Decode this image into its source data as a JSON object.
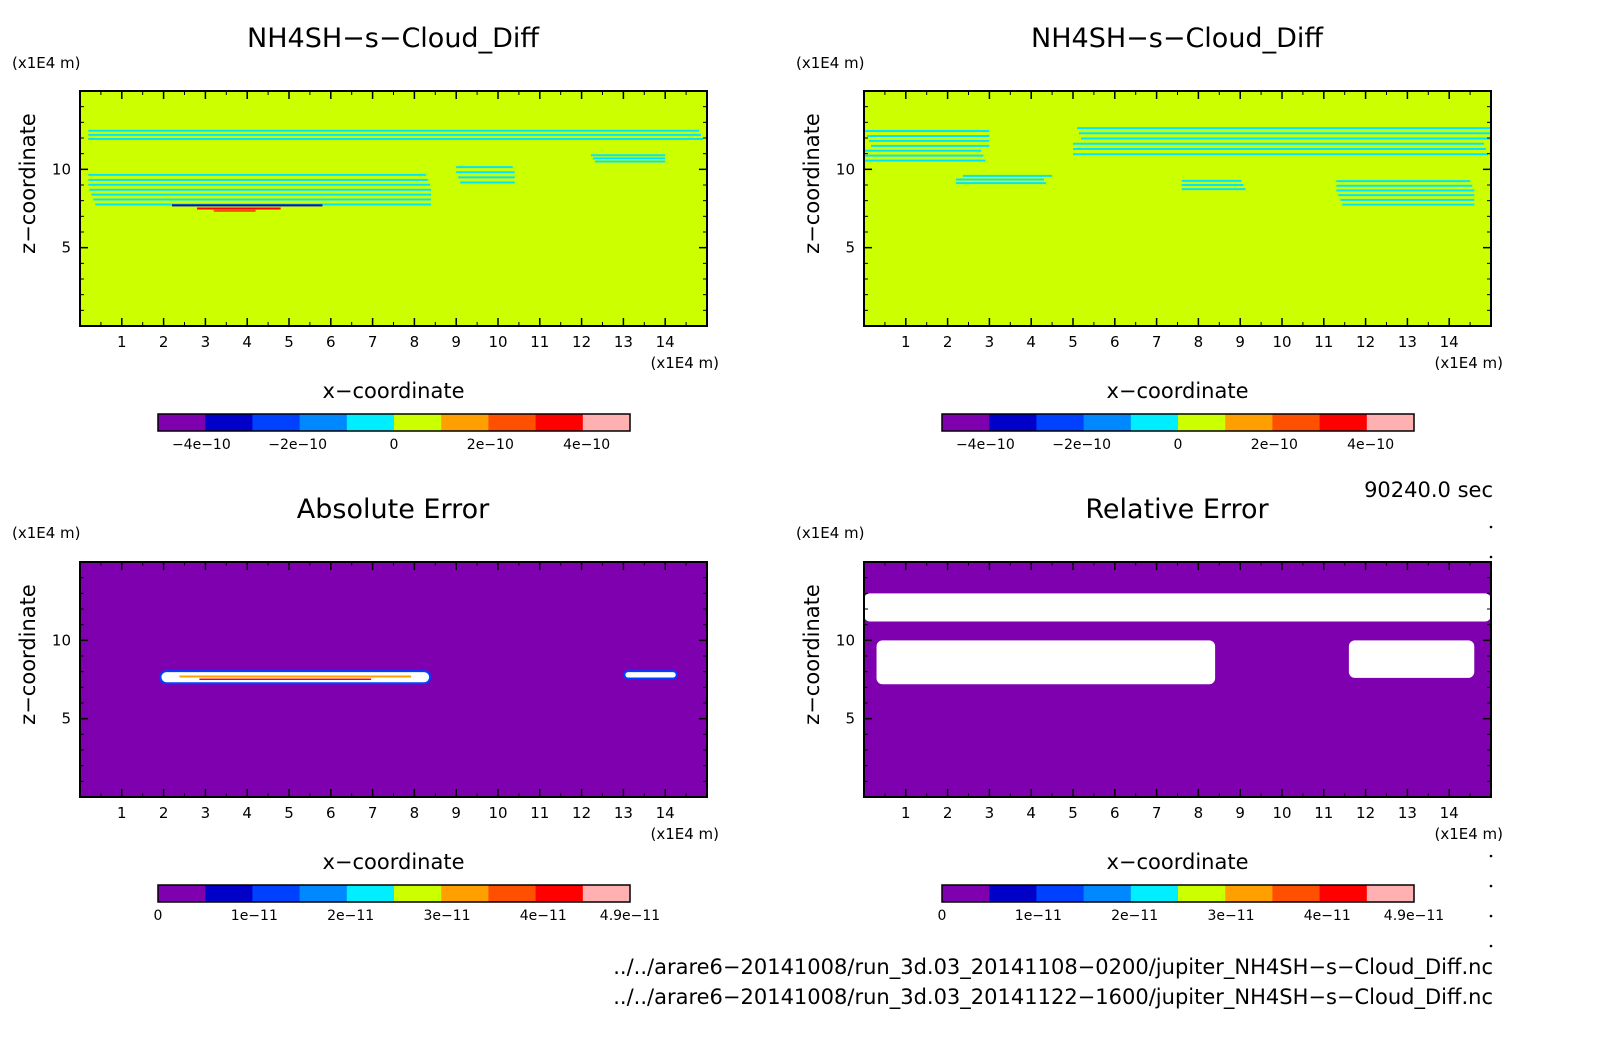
{
  "chart_data": [
    {
      "type": "heatmap",
      "title": "NH4SH−s−Cloud_Diff",
      "xlabel": "x−coordinate",
      "ylabel": "z−coordinate",
      "x_units": "(x1E4 m)",
      "y_units": "(x1E4 m)",
      "xlim": [
        0,
        15
      ],
      "ylim": [
        0,
        15
      ],
      "x_ticks": [
        "1",
        "2",
        "3",
        "4",
        "5",
        "6",
        "7",
        "8",
        "9",
        "10",
        "11",
        "12",
        "13",
        "14"
      ],
      "y_ticks": [
        "5",
        "10"
      ],
      "background_color": "#ccff00",
      "contour_color": "#00e5ff",
      "colorbar": {
        "range": [
          -4.9e-10,
          4.9e-10
        ],
        "colors": [
          "#7f00ae",
          "#0000c8",
          "#0040ff",
          "#0088ff",
          "#00eeff",
          "#ccff00",
          "#ffa000",
          "#ff5000",
          "#ff0000",
          "#ffb0b0"
        ],
        "tick_labels": [
          "−4e−10",
          "−2e−10",
          "0",
          "2e−10",
          "4e−10"
        ],
        "tick_values": [
          -4e-10,
          -2e-10,
          0,
          2e-10,
          4e-10
        ]
      },
      "features": [
        {
          "x": [
            0.2,
            15.0
          ],
          "z": [
            11.8,
            12.6
          ]
        },
        {
          "x": [
            0.2,
            8.4
          ],
          "z": [
            7.6,
            9.8
          ]
        },
        {
          "x": [
            9.0,
            10.4
          ],
          "z": [
            9.0,
            10.3
          ]
        },
        {
          "x": [
            12.2,
            14.0
          ],
          "z": [
            10.4,
            11.0
          ]
        }
      ]
    },
    {
      "type": "heatmap",
      "title": "NH4SH−s−Cloud_Diff",
      "xlabel": "x−coordinate",
      "ylabel": "z−coordinate",
      "x_units": "(x1E4 m)",
      "y_units": "(x1E4 m)",
      "xlim": [
        0,
        15
      ],
      "ylim": [
        0,
        15
      ],
      "x_ticks": [
        "1",
        "2",
        "3",
        "4",
        "5",
        "6",
        "7",
        "8",
        "9",
        "10",
        "11",
        "12",
        "13",
        "14"
      ],
      "y_ticks": [
        "5",
        "10"
      ],
      "background_color": "#ccff00",
      "contour_color": "#00e5ff",
      "colorbar": {
        "range": [
          -4.9e-10,
          4.9e-10
        ],
        "colors": [
          "#7f00ae",
          "#0000c8",
          "#0040ff",
          "#0088ff",
          "#00eeff",
          "#ccff00",
          "#ffa000",
          "#ff5000",
          "#ff0000",
          "#ffb0b0"
        ],
        "tick_labels": [
          "−4e−10",
          "−2e−10",
          "0",
          "2e−10",
          "4e−10"
        ],
        "tick_values": [
          -4e-10,
          -2e-10,
          0,
          2e-10,
          4e-10
        ]
      },
      "features": [
        {
          "x": [
            0.0,
            3.0
          ],
          "z": [
            10.4,
            12.6
          ]
        },
        {
          "x": [
            5.0,
            15.0
          ],
          "z": [
            10.8,
            12.8
          ]
        },
        {
          "x": [
            2.2,
            4.5
          ],
          "z": [
            9.0,
            9.7
          ]
        },
        {
          "x": [
            7.6,
            9.2
          ],
          "z": [
            8.6,
            9.4
          ]
        },
        {
          "x": [
            11.3,
            14.6
          ],
          "z": [
            7.6,
            9.4
          ]
        }
      ]
    },
    {
      "type": "heatmap",
      "title": "Absolute Error",
      "xlabel": "x−coordinate",
      "ylabel": "z−coordinate",
      "x_units": "(x1E4 m)",
      "y_units": "(x1E4 m)",
      "xlim": [
        0,
        15
      ],
      "ylim": [
        0,
        15
      ],
      "x_ticks": [
        "1",
        "2",
        "3",
        "4",
        "5",
        "6",
        "7",
        "8",
        "9",
        "10",
        "11",
        "12",
        "13",
        "14"
      ],
      "y_ticks": [
        "5",
        "10"
      ],
      "background_color": "#7f00ae",
      "colorbar": {
        "range": [
          0,
          4.9e-11
        ],
        "colors": [
          "#7f00ae",
          "#0000c8",
          "#0040ff",
          "#0088ff",
          "#00eeff",
          "#ccff00",
          "#ffa000",
          "#ff5000",
          "#ff0000",
          "#ffb0b0"
        ],
        "tick_labels": [
          "0",
          "1e−11",
          "2e−11",
          "3e−11",
          "4e−11",
          "4.9e−11"
        ],
        "tick_values": [
          0,
          1e-11,
          2e-11,
          3e-11,
          4e-11,
          4.9e-11
        ]
      },
      "features": [
        {
          "x": [
            1.9,
            8.4
          ],
          "z": [
            7.2,
            8.1
          ]
        },
        {
          "x": [
            13.0,
            14.3
          ],
          "z": [
            7.5,
            8.1
          ]
        }
      ]
    },
    {
      "type": "heatmap",
      "title": "Relative Error",
      "xlabel": "x−coordinate",
      "ylabel": "z−coordinate",
      "x_units": "(x1E4 m)",
      "y_units": "(x1E4 m)",
      "xlim": [
        0,
        15
      ],
      "ylim": [
        0,
        15
      ],
      "x_ticks": [
        "1",
        "2",
        "3",
        "4",
        "5",
        "6",
        "7",
        "8",
        "9",
        "10",
        "11",
        "12",
        "13",
        "14"
      ],
      "y_ticks": [
        "5",
        "10"
      ],
      "background_color": "#7f00ae",
      "colorbar": {
        "range": [
          0,
          4.9e-11
        ],
        "colors": [
          "#7f00ae",
          "#0000c8",
          "#0040ff",
          "#0088ff",
          "#00eeff",
          "#ccff00",
          "#ffa000",
          "#ff5000",
          "#ff0000",
          "#ffb0b0"
        ],
        "tick_labels": [
          "0",
          "1e−11",
          "2e−11",
          "3e−11",
          "4e−11",
          "4.9e−11"
        ],
        "tick_values": [
          0,
          1e-11,
          2e-11,
          3e-11,
          4e-11,
          4.9e-11
        ]
      },
      "features": [
        {
          "x": [
            0.0,
            15.0
          ],
          "z": [
            11.2,
            13.0
          ]
        },
        {
          "x": [
            0.3,
            8.4
          ],
          "z": [
            7.2,
            10.0
          ]
        },
        {
          "x": [
            11.6,
            14.6
          ],
          "z": [
            7.6,
            10.0
          ]
        }
      ]
    }
  ],
  "time_label": "90240.0 sec",
  "file_paths": [
    "../../arare6−20141008/run_3d.03_20141108−0200/jupiter_NH4SH−s−Cloud_Diff.nc",
    "../../arare6−20141008/run_3d.03_20141122−1600/jupiter_NH4SH−s−Cloud_Diff.nc"
  ]
}
